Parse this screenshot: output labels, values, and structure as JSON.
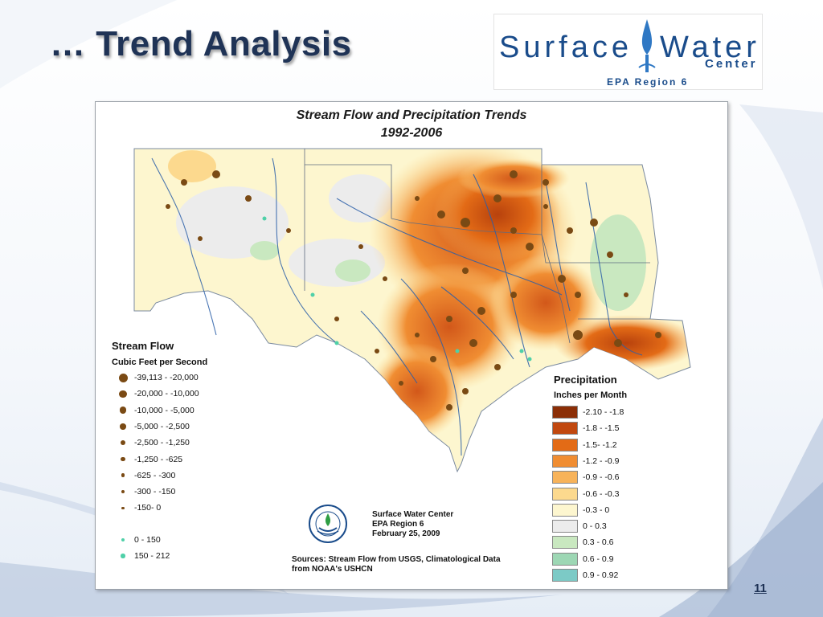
{
  "slide": {
    "title": "… Trend Analysis",
    "page_number": "11"
  },
  "logo": {
    "word1": "Surface",
    "word2": "Water",
    "center": "Center",
    "region": "EPA Region 6"
  },
  "map": {
    "title_line1": "Stream Flow and Precipitation Trends",
    "title_line2": "1992-2006",
    "stream_flow_legend": {
      "title": "Stream Flow",
      "subtitle": "Cubic Feet per Second",
      "decreasing_items": [
        {
          "label": "-39,113 - -20,000"
        },
        {
          "label": "-20,000 - -10,000"
        },
        {
          "label": "-10,000 - -5,000"
        },
        {
          "label": "-5,000 - -2,500"
        },
        {
          "label": "-2,500 - -1,250"
        },
        {
          "label": "-1,250 - -625"
        },
        {
          "label": "-625 - -300"
        },
        {
          "label": "-300 - -150"
        },
        {
          "label": "-150- 0"
        }
      ],
      "increasing_items": [
        {
          "label": "0 - 150"
        },
        {
          "label": "150 - 212"
        }
      ],
      "decrease_color": "#7a4a14",
      "increase_color": "#4fd0a8"
    },
    "precip_legend": {
      "title": "Precipitation",
      "subtitle": "Inches per Month",
      "items": [
        {
          "label": "-2.10 - -1.8",
          "color": "#8b2e06"
        },
        {
          "label": "-1.8 - -1.5",
          "color": "#c1480f"
        },
        {
          "label": "-1.5- -1.2",
          "color": "#e36b16"
        },
        {
          "label": "-1.2 - -0.9",
          "color": "#f08d32"
        },
        {
          "label": "-0.9 - -0.6",
          "color": "#f7b35a"
        },
        {
          "label": "-0.6 - -0.3",
          "color": "#fcd98e"
        },
        {
          "label": "-0.3 - 0",
          "color": "#fdf6cf"
        },
        {
          "label": "0 - 0.3",
          "color": "#ececec"
        },
        {
          "label": "0.3 - 0.6",
          "color": "#c9e8c0"
        },
        {
          "label": "0.6 - 0.9",
          "color": "#9dd7b4"
        },
        {
          "label": "0.9 - 0.92",
          "color": "#7ccac6"
        }
      ]
    },
    "credit": {
      "org": "Surface Water Center",
      "region": "EPA Region 6",
      "date": "February 25, 2009",
      "sources": "Sources: Stream Flow from USGS, Climatological Data\nfrom NOAA's USHCN"
    }
  }
}
